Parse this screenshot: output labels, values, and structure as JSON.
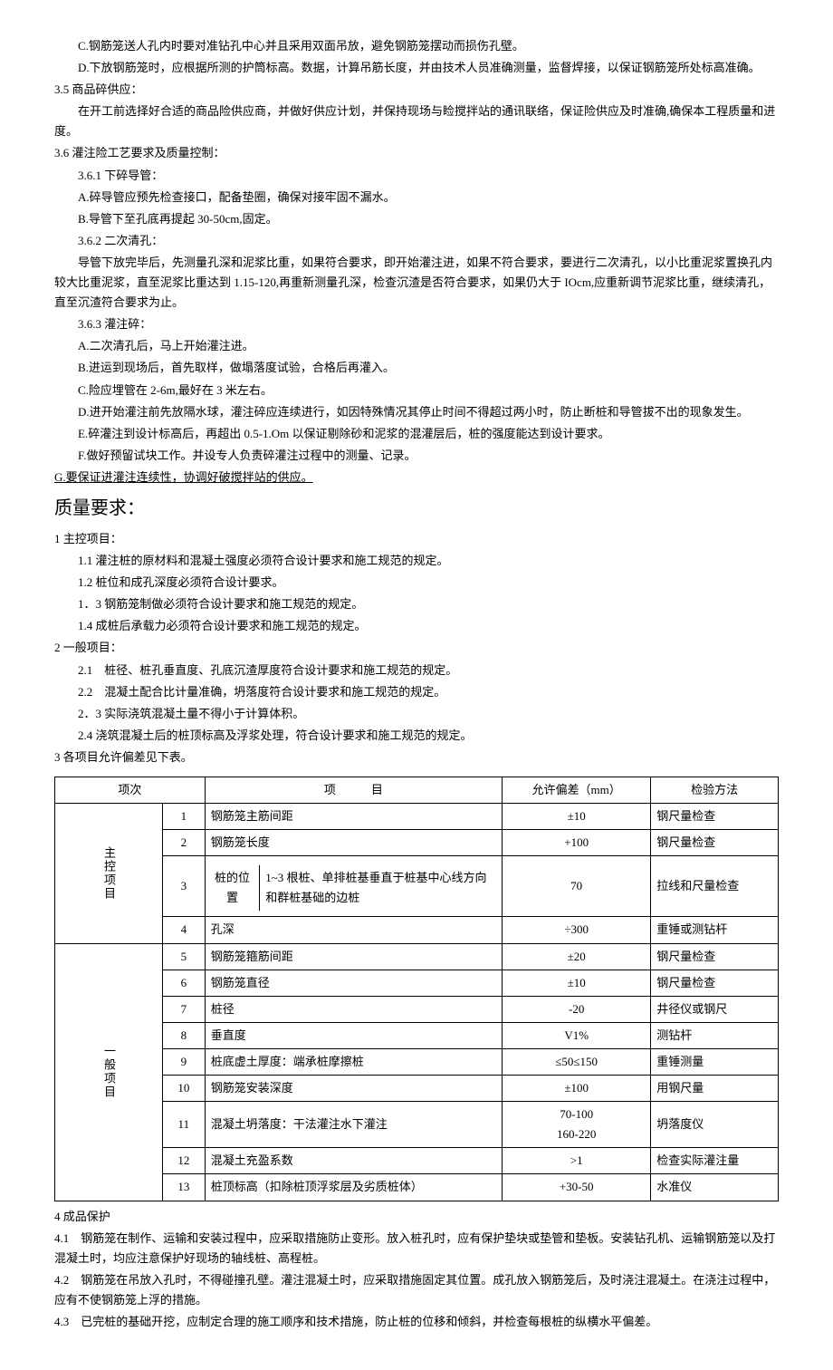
{
  "intro": {
    "p1": "C.钢筋笼送人孔内时要对准钻孔中心并且采用双面吊放，避免钢筋笼摆动而损伤孔壁。",
    "p2": "D.下放钢筋笼时，应根据所测的护筒标高。数据，计算吊筋长度，并由技术人员准确测量，监督焊接，以保证钢筋笼所处标高准确。"
  },
  "s35": {
    "title": "3.5 商品碎供应：",
    "p1": "在开工前选择好合适的商品险供应商，并做好供应计划，并保持现场与睑搅拌站的通讯联络，保证险供应及时准确,确保本工程质量和进度。"
  },
  "s36": {
    "title": "3.6 灌注险工艺要求及质量控制：",
    "s361": "3.6.1 下碎导管：",
    "s361a": "A.碎导管应预先检查接口，配备垫圈，确保对接牢固不漏水。",
    "s361b": "B.导管下至孔底再提起 30-50cm,固定。",
    "s362": "3.6.2 二次清孔：",
    "s362p": "导管下放完毕后，先测量孔深和泥浆比重，如果符合要求，即开始灌注进，如果不符合要求，要进行二次清孔，以小比重泥浆置换孔内较大比重泥浆，直至泥浆比重达到 1.15-120,再重新测量孔深，检查沉渣是否符合要求，如果仍大于 IOcm,应重新调节泥浆比重，继续清孔，直至沉渣符合要求为止。",
    "s363": "3.6.3 灌注碎：",
    "s363a": "A.二次清孔后，马上开始灌注进。",
    "s363b": "B.进运到现场后，首先取样，做塌落度试验，合格后再灌入。",
    "s363c": "C.险应埋管在 2-6m,最好在 3 米左右。",
    "s363d": "D.进开始灌注前先放隔水球，灌注碎应连续进行，如因特殊情况其停止时间不得超过两小时，防止断桩和导管拔不出的现象发生。",
    "s363e": "E.碎灌注到设计标高后，再超出 0.5-1.Om 以保证剔除砂和泥浆的混灌层后，桩的强度能达到设计要求。",
    "s363f": "F.做好预留试块工作。并设专人负责碎灌注过程中的测量、记录。",
    "s363g": "G.要保证进灌注连续性，协调好破搅拌站的供应。"
  },
  "quality": {
    "title": "质量要求：",
    "s1": "1 主控项目：",
    "s11": "1.1 灌注桩的原材料和混凝土强度必须符合设计要求和施工规范的规定。",
    "s12": "1.2 桩位和成孔深度必须符合设计要求。",
    "s13": "1．3 钢筋笼制做必须符合设计要求和施工规范的规定。",
    "s14": "1.4 成桩后承载力必须符合设计要求和施工规范的规定。",
    "s2": "2 一般项目：",
    "s21": "2.1　桩径、桩孔垂直度、孔底沉渣厚度符合设计要求和施工规范的规定。",
    "s22": "2.2　混凝土配合比计量准确，坍落度符合设计要求和施工规范的规定。",
    "s23": "2．3 实际浇筑混凝土量不得小于计算体积。",
    "s24": "2.4 浇筑混凝土后的桩顶标高及浮浆处理，符合设计要求和施工规范的规定。",
    "s3": "3 各项目允许偏差见下表。"
  },
  "table": {
    "headers": {
      "h1": "项次",
      "h2": "项　　　目",
      "h3": "允许偏差（mm）",
      "h4": "检验方法"
    },
    "group1": "主控项目",
    "group2": "一般项目",
    "rows": [
      {
        "num": "1",
        "item": "钢筋笼主筋间距",
        "tol": "±10",
        "method": "钢尺量检查"
      },
      {
        "num": "2",
        "item": "钢筋笼长度",
        "tol": "+100",
        "method": "钢尺量检查"
      },
      {
        "num": "3",
        "item_label": "桩的位置",
        "item_desc": "1~3 根桩、单排桩基垂直于桩基中心线方向和群桩基础的边桩",
        "tol": "70",
        "method": "拉线和尺量检查"
      },
      {
        "num": "4",
        "item": "孔深",
        "tol": "÷300",
        "method": "重锤或测钻杆"
      },
      {
        "num": "5",
        "item": "钢筋笼箍筋间距",
        "tol": "±20",
        "method": "钢尺量检查"
      },
      {
        "num": "6",
        "item": "钢筋笼直径",
        "tol": "±10",
        "method": "钢尺量检查"
      },
      {
        "num": "7",
        "item": "桩径",
        "tol": "-20",
        "method": "井径仪或钢尺"
      },
      {
        "num": "8",
        "item": "垂直度",
        "tol": "V1%",
        "method": "测钻杆"
      },
      {
        "num": "9",
        "item": "桩底虚土厚度：端承桩摩擦桩",
        "tol": "≤50≤150",
        "method": "重锤测量"
      },
      {
        "num": "10",
        "item": "钢筋笼安装深度",
        "tol": "±100",
        "method": "用钢尺量"
      },
      {
        "num": "11",
        "item": "混凝土坍落度：干法灌注水下灌注",
        "tol": "70-100\n160-220",
        "method": "坍落度仪"
      },
      {
        "num": "12",
        "item": "混凝土充盈系数",
        "tol": ">1",
        "method": "检查实际灌注量"
      },
      {
        "num": "13",
        "item": "桩顶标高（扣除桩顶浮浆层及劣质桩体）",
        "tol": "+30-50",
        "method": "水准仪"
      }
    ]
  },
  "s4": {
    "title": "4 成品保护",
    "p41": "4.1　钢筋笼在制作、运输和安装过程中，应采取措施防止变形。放入桩孔时，应有保护垫块或垫管和垫板。安装钻孔机、运输钢筋笼以及打混凝土时，均应注意保护好现场的轴线桩、高程桩。",
    "p42": "4.2　钢筋笼在吊放入孔时，不得碰撞孔壁。灌注混凝土时，应采取措施固定其位置。成孔放入钢筋笼后，及时浇注混凝土。在浇注过程中，应有不使钢筋笼上浮的措施。",
    "p43": "4.3　已完桩的基础开挖，应制定合理的施工顺序和技术措施，防止桩的位移和倾斜，并检查每根桩的纵横水平偏差。"
  }
}
